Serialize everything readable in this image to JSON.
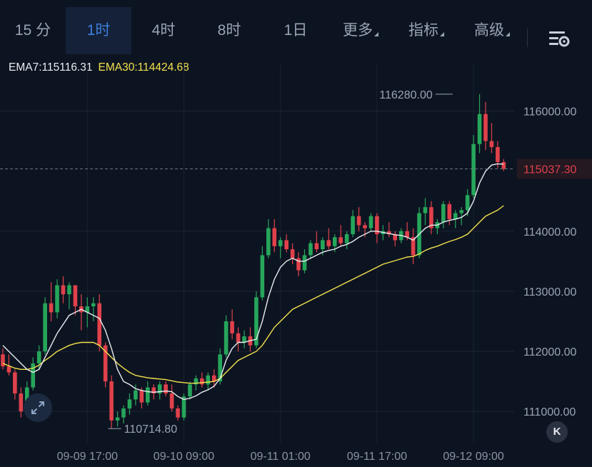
{
  "tabs": [
    {
      "label": "15 分",
      "active": false,
      "has_menu": false
    },
    {
      "label": "1时",
      "active": true,
      "has_menu": false
    },
    {
      "label": "4时",
      "active": false,
      "has_menu": false
    },
    {
      "label": "8时",
      "active": false,
      "has_menu": false
    },
    {
      "label": "1日",
      "active": false,
      "has_menu": false
    },
    {
      "label": "更多",
      "active": false,
      "has_menu": true
    },
    {
      "label": "指标",
      "active": false,
      "has_menu": true
    },
    {
      "label": "高级",
      "active": false,
      "has_menu": true
    }
  ],
  "toolbar": {
    "settings_icon": "chart-settings-icon"
  },
  "legend": {
    "ema7": "EMA7:115116.31",
    "ema30": "EMA30:114424.68"
  },
  "buttons": {
    "expand_icon": "expand-arrows-icon",
    "back_label": "K"
  },
  "colors": {
    "background": "#0d1421",
    "up": "#26a65b",
    "down": "#e0414b",
    "ema7": "#e8ebf0",
    "ema30": "#f2e14c",
    "active_tab": "#3e7fdc",
    "price_tag": "#e0414b"
  },
  "chart_data": {
    "type": "candlestick",
    "interval": "1时",
    "y_ticks": [
      "116000.00",
      "114000.00",
      "113000.00",
      "112000.00",
      "111000.00"
    ],
    "y_tick_values": [
      116000,
      114000,
      113000,
      112000,
      111000
    ],
    "x_ticks": [
      "09-09 17:00",
      "09-10 09:00",
      "09-11 01:00",
      "09-11 17:00",
      "09-12 09:00"
    ],
    "x_tick_index": [
      14,
      30,
      46,
      62,
      78
    ],
    "current_price": "115037.30",
    "current_price_value": 115037.3,
    "high_label": "116280.00",
    "high_value": 116280,
    "high_index": 75,
    "low_label": "110714.80",
    "low_value": 110714.8,
    "low_index": 17,
    "ylim": [
      110480,
      116540
    ],
    "grid": true,
    "candles": [
      [
        111950,
        112050,
        111700,
        111750
      ],
      [
        111750,
        111950,
        111600,
        111650
      ],
      [
        111650,
        111700,
        111200,
        111300
      ],
      [
        111300,
        111400,
        110900,
        111000
      ],
      [
        111000,
        111500,
        110950,
        111400
      ],
      [
        111400,
        111900,
        111350,
        111800
      ],
      [
        111800,
        112100,
        111700,
        112000
      ],
      [
        112000,
        112900,
        111950,
        112800
      ],
      [
        112800,
        113150,
        112500,
        112650
      ],
      [
        112650,
        113200,
        112550,
        113100
      ],
      [
        113100,
        113250,
        112800,
        112950
      ],
      [
        112950,
        113150,
        112700,
        113100
      ],
      [
        113100,
        113100,
        112600,
        112750
      ],
      [
        112750,
        112950,
        112350,
        112650
      ],
      [
        112650,
        112900,
        112400,
        112750
      ],
      [
        112750,
        112900,
        112500,
        112800
      ],
      [
        112800,
        112950,
        112000,
        112100
      ],
      [
        112100,
        112150,
        111400,
        111500
      ],
      [
        111500,
        111600,
        110714.8,
        110850
      ],
      [
        110850,
        111000,
        110750,
        110900
      ],
      [
        110900,
        111100,
        110800,
        111050
      ],
      [
        111050,
        111300,
        110950,
        111200
      ],
      [
        111200,
        111450,
        111100,
        111350
      ],
      [
        111350,
        111400,
        111050,
        111150
      ],
      [
        111150,
        111500,
        111100,
        111400
      ],
      [
        111400,
        111450,
        111200,
        111300
      ],
      [
        111300,
        111500,
        111200,
        111450
      ],
      [
        111450,
        111500,
        111250,
        111300
      ],
      [
        111300,
        111450,
        111000,
        111050
      ],
      [
        111050,
        111100,
        110850,
        110900
      ],
      [
        110900,
        111300,
        110850,
        111250
      ],
      [
        111250,
        111500,
        111200,
        111450
      ],
      [
        111450,
        111600,
        111350,
        111550
      ],
      [
        111550,
        111650,
        111400,
        111450
      ],
      [
        111450,
        111650,
        111350,
        111600
      ],
      [
        111600,
        111700,
        111400,
        111500
      ],
      [
        111500,
        112050,
        111450,
        111950
      ],
      [
        111950,
        112600,
        111900,
        112500
      ],
      [
        112500,
        112700,
        112200,
        112300
      ],
      [
        112300,
        112400,
        112000,
        112150
      ],
      [
        112150,
        112350,
        112050,
        112250
      ],
      [
        112250,
        112400,
        112000,
        112100
      ],
      [
        112100,
        113000,
        112050,
        112900
      ],
      [
        112900,
        113750,
        112850,
        113600
      ],
      [
        113600,
        114200,
        113550,
        114050
      ],
      [
        114050,
        114200,
        113650,
        113750
      ],
      [
        113750,
        113900,
        113550,
        113850
      ],
      [
        113850,
        113950,
        113650,
        113700
      ],
      [
        113700,
        113800,
        113450,
        113550
      ],
      [
        113550,
        113650,
        113250,
        113350
      ],
      [
        113350,
        113700,
        113300,
        113600
      ],
      [
        113600,
        113850,
        113550,
        113800
      ],
      [
        113800,
        114000,
        113650,
        113700
      ],
      [
        113700,
        113900,
        113600,
        113850
      ],
      [
        113850,
        114050,
        113700,
        113750
      ],
      [
        113750,
        113950,
        113650,
        113900
      ],
      [
        113900,
        114100,
        113750,
        113800
      ],
      [
        113800,
        114000,
        113700,
        113950
      ],
      [
        113950,
        114350,
        113900,
        114250
      ],
      [
        114250,
        114400,
        114000,
        114100
      ],
      [
        114100,
        114150,
        113900,
        114050
      ],
      [
        114050,
        114300,
        114000,
        114250
      ],
      [
        114250,
        114300,
        113800,
        113950
      ],
      [
        113950,
        114100,
        113850,
        114000
      ],
      [
        114000,
        114150,
        113900,
        113950
      ],
      [
        113950,
        114000,
        113750,
        113850
      ],
      [
        113850,
        114050,
        113800,
        114000
      ],
      [
        114000,
        114150,
        113850,
        113900
      ],
      [
        113900,
        114050,
        113450,
        113600
      ],
      [
        113600,
        114400,
        113550,
        114300
      ],
      [
        114300,
        114550,
        114100,
        114400
      ],
      [
        114400,
        114500,
        113950,
        114050
      ],
      [
        114050,
        114200,
        113950,
        114150
      ],
      [
        114150,
        114500,
        114050,
        114450
      ],
      [
        114450,
        114500,
        114100,
        114200
      ],
      [
        114200,
        114350,
        114050,
        114300
      ],
      [
        114300,
        114400,
        114100,
        114350
      ],
      [
        114350,
        114700,
        114250,
        114600
      ],
      [
        114600,
        115600,
        114550,
        115450
      ],
      [
        115450,
        116280,
        115300,
        115950
      ],
      [
        115950,
        116150,
        115350,
        115500
      ],
      [
        115500,
        115800,
        115300,
        115400
      ],
      [
        115400,
        115500,
        115050,
        115150
      ],
      [
        115150,
        115200,
        115000,
        115037.3
      ]
    ],
    "ema7": [
      112100,
      112000,
      111900,
      111800,
      111700,
      111650,
      111700,
      111900,
      112100,
      112300,
      112450,
      112600,
      112650,
      112700,
      112650,
      112600,
      112550,
      112350,
      112050,
      111700,
      111500,
      111450,
      111380,
      111350,
      111330,
      111320,
      111330,
      111340,
      111330,
      111250,
      111200,
      111220,
      111260,
      111320,
      111360,
      111420,
      111550,
      111850,
      112050,
      112150,
      112150,
      112180,
      112200,
      112500,
      112900,
      113200,
      113400,
      113500,
      113550,
      113500,
      113500,
      113550,
      113600,
      113650,
      113680,
      113700,
      113750,
      113780,
      113830,
      113900,
      113950,
      114000,
      114000,
      113980,
      113960,
      113940,
      113930,
      113900,
      113850,
      113950,
      114050,
      114100,
      114100,
      114150,
      114180,
      114200,
      114230,
      114300,
      114500,
      114800,
      115000,
      115100,
      115120,
      115116.31
    ],
    "ema30": [
      111800,
      111760,
      111720,
      111700,
      111700,
      111720,
      111770,
      111850,
      111920,
      112000,
      112050,
      112100,
      112130,
      112150,
      112150,
      112150,
      112100,
      112000,
      111900,
      111800,
      111720,
      111650,
      111600,
      111580,
      111560,
      111550,
      111540,
      111530,
      111510,
      111490,
      111480,
      111470,
      111470,
      111480,
      111490,
      111500,
      111550,
      111650,
      111750,
      111850,
      111900,
      111950,
      112000,
      112100,
      112250,
      112400,
      112500,
      112600,
      112700,
      112750,
      112800,
      112850,
      112900,
      112950,
      113000,
      113050,
      113100,
      113150,
      113200,
      113250,
      113300,
      113350,
      113400,
      113450,
      113480,
      113510,
      113540,
      113570,
      113580,
      113620,
      113680,
      113720,
      113750,
      113790,
      113830,
      113860,
      113900,
      113950,
      114050,
      114150,
      114250,
      114300,
      114350,
      114424.68
    ]
  }
}
